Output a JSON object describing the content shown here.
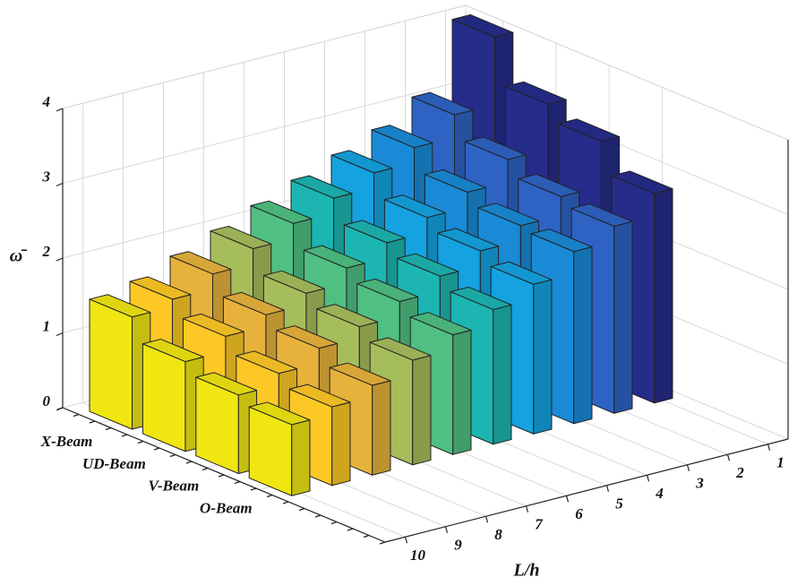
{
  "chart_data": {
    "type": "bar3d",
    "xlabel": "L/h",
    "zlabel": "ω̄",
    "categories": [
      "10",
      "9",
      "8",
      "7",
      "6",
      "5",
      "4",
      "3",
      "2",
      "1"
    ],
    "colors": [
      "#f0e612",
      "#fdc826",
      "#e7b23c",
      "#a6bd5c",
      "#4fbf82",
      "#1db5b1",
      "#14a2e0",
      "#1a8ad6",
      "#2e63c4",
      "#262c8a"
    ],
    "series": [
      {
        "name": "X-Beam",
        "values": [
          1.5,
          1.6,
          1.8,
          2.0,
          2.2,
          2.4,
          2.6,
          2.8,
          3.1,
          4.0
        ]
      },
      {
        "name": "UD-Beam",
        "values": [
          1.2,
          1.4,
          1.55,
          1.7,
          1.9,
          2.1,
          2.3,
          2.5,
          2.8,
          3.4
        ]
      },
      {
        "name": "V-Beam",
        "values": [
          1.05,
          1.2,
          1.4,
          1.55,
          1.75,
          1.95,
          2.15,
          2.35,
          2.6,
          3.2
        ]
      },
      {
        "name": "O-Beam",
        "values": [
          0.95,
          1.05,
          1.2,
          1.4,
          1.6,
          1.8,
          2.0,
          2.3,
          2.5,
          2.8
        ]
      }
    ],
    "zlim": [
      0,
      4
    ],
    "zticks": [
      0,
      1,
      2,
      3,
      4
    ],
    "grid": true
  }
}
